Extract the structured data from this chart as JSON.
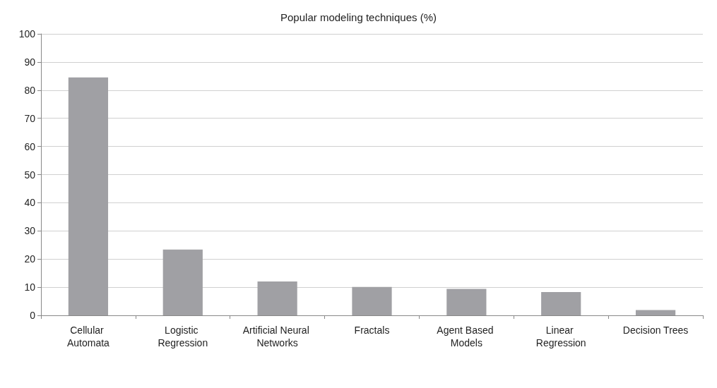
{
  "chart_data": {
    "type": "bar",
    "title": "Popular modeling techniques (%)",
    "categories": [
      "Cellular Automata",
      "Logistic Regression",
      "Artificial Neural Networks",
      "Fractals",
      "Agent Based Models",
      "Linear Regression",
      "Decision Trees"
    ],
    "values": [
      84.5,
      23.4,
      12,
      10.1,
      9.4,
      8.3,
      1.9
    ],
    "color": "#a0a0a4",
    "ylim": [
      0,
      100
    ],
    "yticks": [
      0,
      10,
      20,
      30,
      40,
      50,
      60,
      70,
      80,
      90,
      100
    ],
    "grid": "y"
  }
}
